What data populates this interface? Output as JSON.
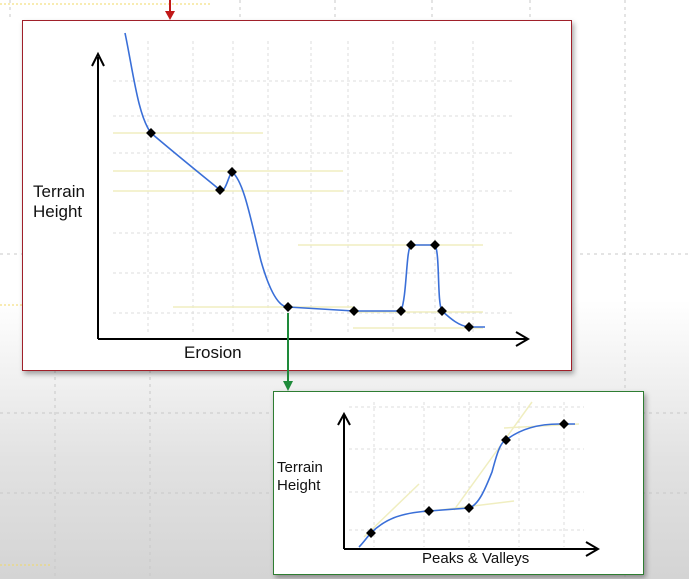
{
  "erosion_panel": {
    "y_label_line1": "Terrain",
    "y_label_line2": "Height",
    "x_label": "Erosion",
    "border_color": "#a0202a"
  },
  "peaks_panel": {
    "y_label_line1": "Terrain",
    "y_label_line2": "Height",
    "x_label": "Peaks & Valleys",
    "border_color": "#2e7d32"
  },
  "colors": {
    "curve": "#3a6fd8",
    "axis": "#000000",
    "grid": "#d4d4d4",
    "guide": "#f0eec0",
    "point": "#000000",
    "red_arrow": "#c01818",
    "green_arrow": "#1e8a3a"
  }
}
